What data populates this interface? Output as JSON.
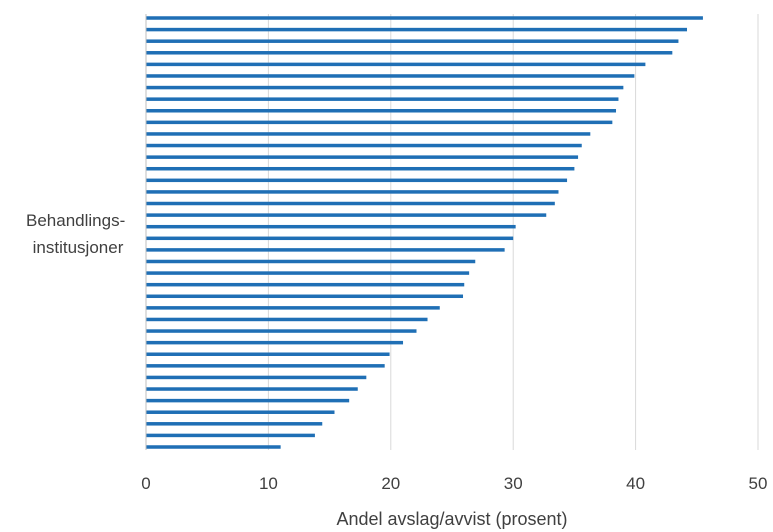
{
  "chart_data": {
    "type": "bar",
    "orientation": "horizontal",
    "xlabel": "Andel avslag/avvist (prosent)",
    "ylabel_lines": [
      "Behandlings-",
      "institusjoner"
    ],
    "xlim": [
      0,
      50
    ],
    "xticks": [
      "0",
      "10",
      "20",
      "30",
      "40",
      "50"
    ],
    "grid": "vertical",
    "bar_color": "#1F6FB5",
    "grid_color": "#D9D9D9",
    "values": [
      45.5,
      44.2,
      43.5,
      43.0,
      40.8,
      39.9,
      39.0,
      38.6,
      38.4,
      38.1,
      36.3,
      35.6,
      35.3,
      35.0,
      34.4,
      33.7,
      33.4,
      32.7,
      30.2,
      30.0,
      29.3,
      26.9,
      26.4,
      26.0,
      25.9,
      24.0,
      23.0,
      22.1,
      21.0,
      19.9,
      19.5,
      18.0,
      17.3,
      16.6,
      15.4,
      14.4,
      13.8,
      11.0
    ]
  }
}
